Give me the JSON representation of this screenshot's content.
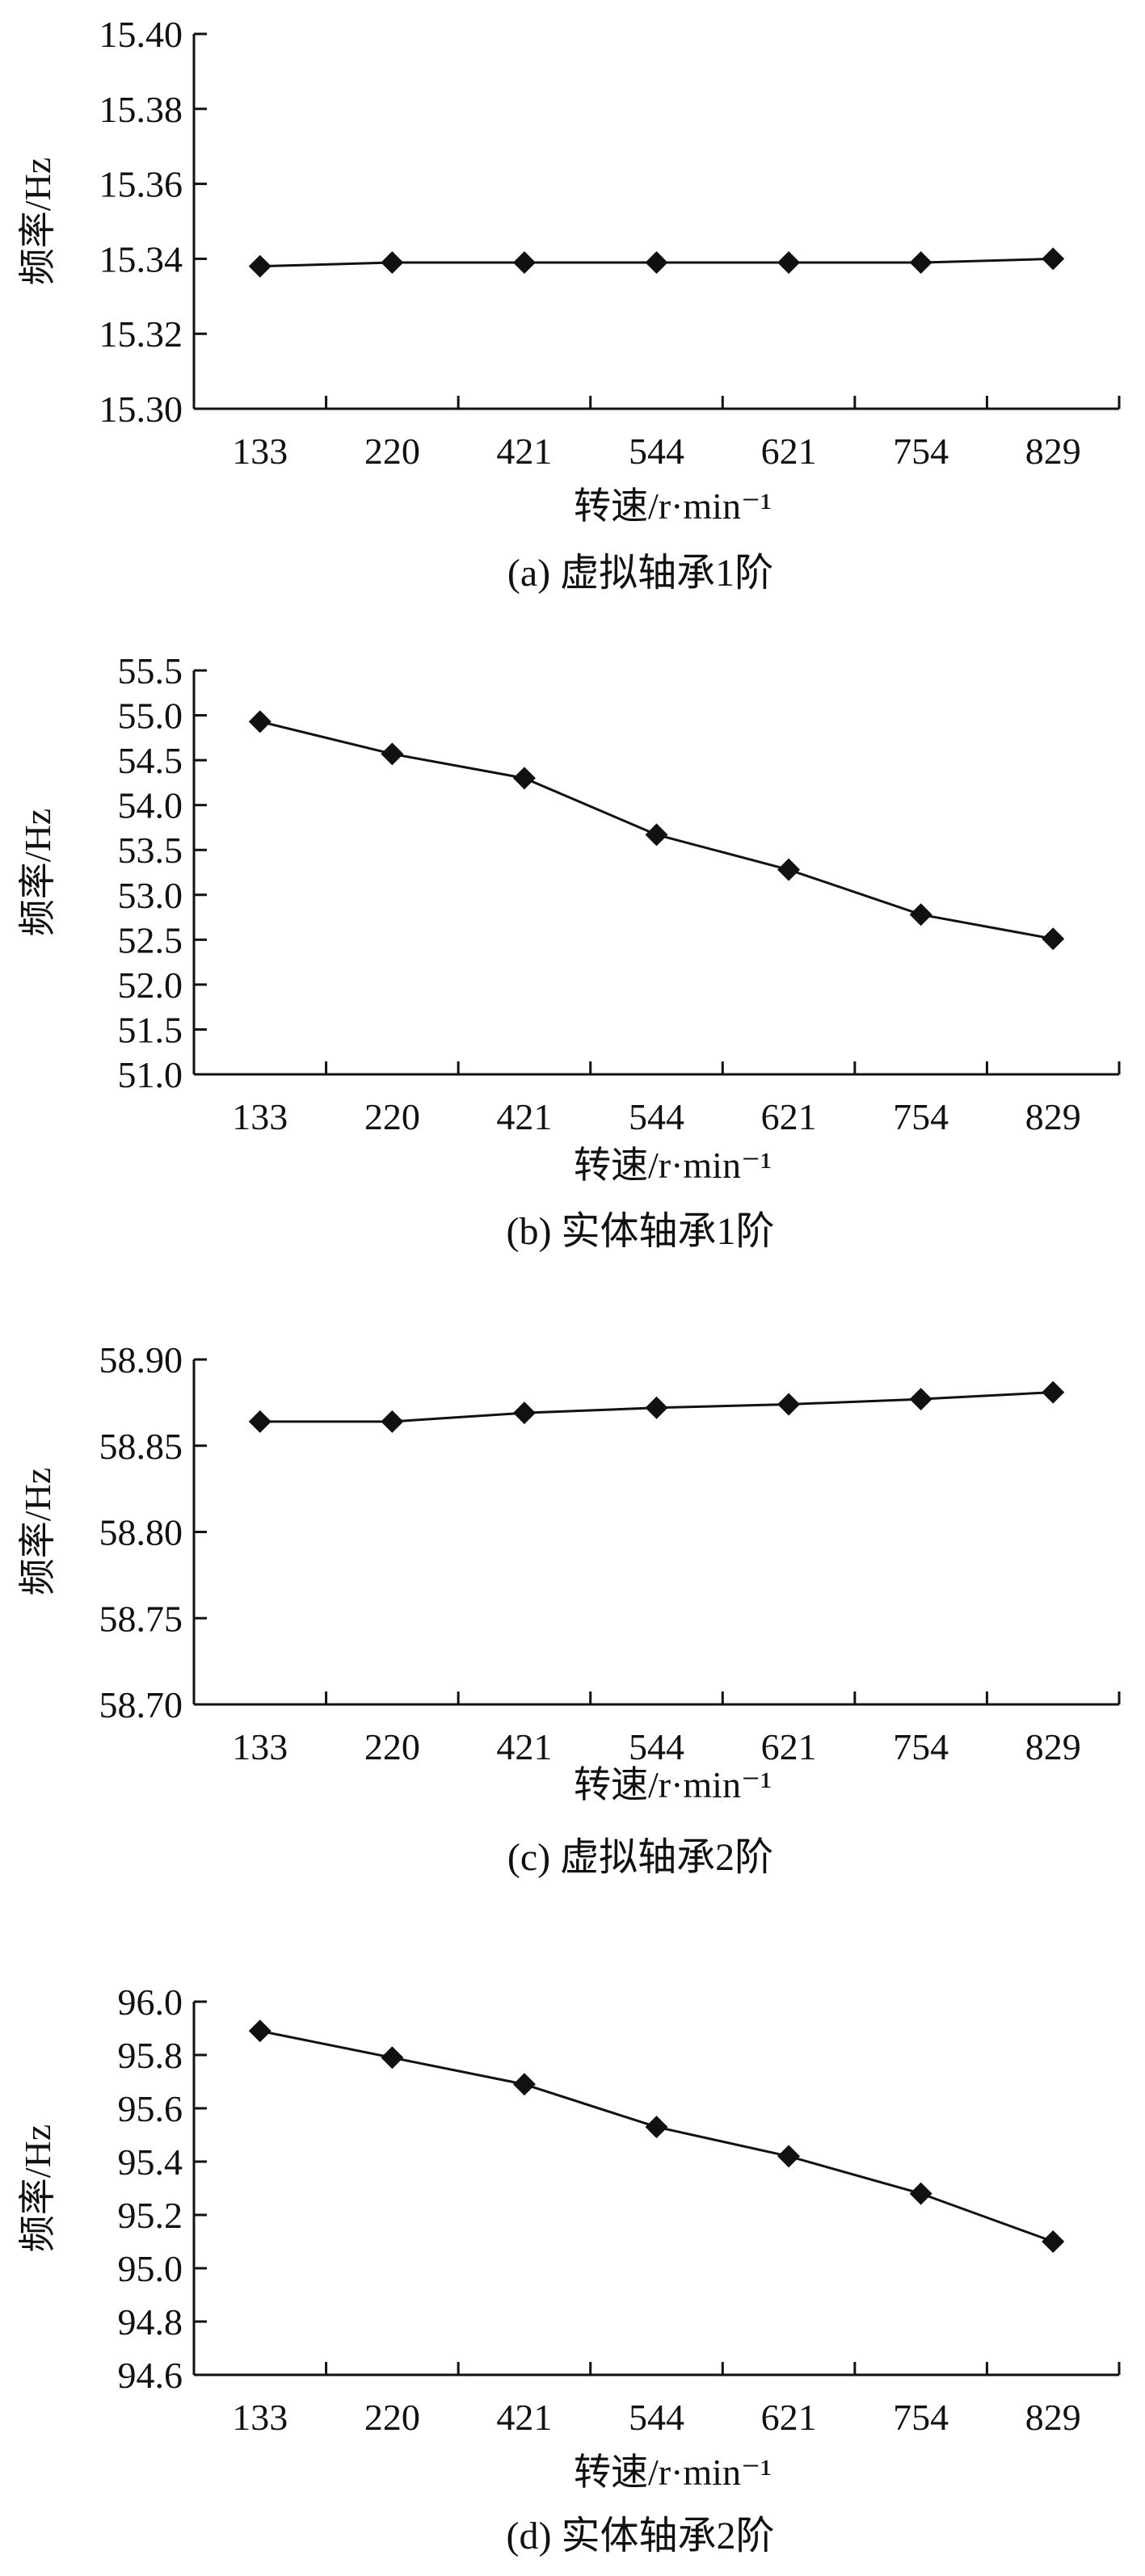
{
  "chart_data": [
    {
      "type": "line",
      "caption": "(a) 虚拟轴承1阶",
      "xlabel": "转速/r·min⁻¹",
      "ylabel": "频率/Hz",
      "categories": [
        "133",
        "220",
        "421",
        "544",
        "621",
        "754",
        "829"
      ],
      "ylim": [
        15.3,
        15.4
      ],
      "yticks": [
        "15.30",
        "15.32",
        "15.34",
        "15.36",
        "15.38",
        "15.40"
      ],
      "series": [
        {
          "values": [
            15.338,
            15.339,
            15.339,
            15.339,
            15.339,
            15.339,
            15.34
          ]
        }
      ],
      "grid": false,
      "marker": "diamond",
      "line_color": "#111111"
    },
    {
      "type": "line",
      "caption": "(b) 实体轴承1阶",
      "xlabel": "转速/r·min⁻¹",
      "ylabel": "频率/Hz",
      "categories": [
        "133",
        "220",
        "421",
        "544",
        "621",
        "754",
        "829"
      ],
      "ylim": [
        51.0,
        55.5
      ],
      "yticks": [
        "51.0",
        "51.5",
        "52.0",
        "52.5",
        "53.0",
        "53.5",
        "54.0",
        "54.5",
        "55.0",
        "55.5"
      ],
      "series": [
        {
          "values": [
            54.93,
            54.57,
            54.3,
            53.67,
            53.28,
            52.78,
            52.51
          ]
        }
      ],
      "grid": false,
      "marker": "diamond",
      "line_color": "#111111"
    },
    {
      "type": "line",
      "caption": "(c) 虚拟轴承2阶",
      "xlabel": "转速/r·min⁻¹",
      "ylabel": "频率/Hz",
      "categories": [
        "133",
        "220",
        "421",
        "544",
        "621",
        "754",
        "829"
      ],
      "ylim": [
        58.7,
        58.9
      ],
      "yticks": [
        "58.70",
        "58.75",
        "58.80",
        "58.85",
        "58.90"
      ],
      "series": [
        {
          "values": [
            58.864,
            58.864,
            58.869,
            58.872,
            58.874,
            58.877,
            58.881
          ]
        }
      ],
      "grid": false,
      "marker": "diamond",
      "line_color": "#111111"
    },
    {
      "type": "line",
      "caption": "(d) 实体轴承2阶",
      "xlabel": "转速/r·min⁻¹",
      "ylabel": "频率/Hz",
      "categories": [
        "133",
        "220",
        "421",
        "544",
        "621",
        "754",
        "829"
      ],
      "ylim": [
        94.6,
        96.0
      ],
      "yticks": [
        "94.6",
        "94.8",
        "95.0",
        "95.2",
        "95.4",
        "95.6",
        "95.8",
        "96.0"
      ],
      "series": [
        {
          "values": [
            95.89,
            95.79,
            95.69,
            95.53,
            95.42,
            95.28,
            95.1
          ]
        }
      ],
      "grid": false,
      "marker": "diamond",
      "line_color": "#111111"
    }
  ]
}
